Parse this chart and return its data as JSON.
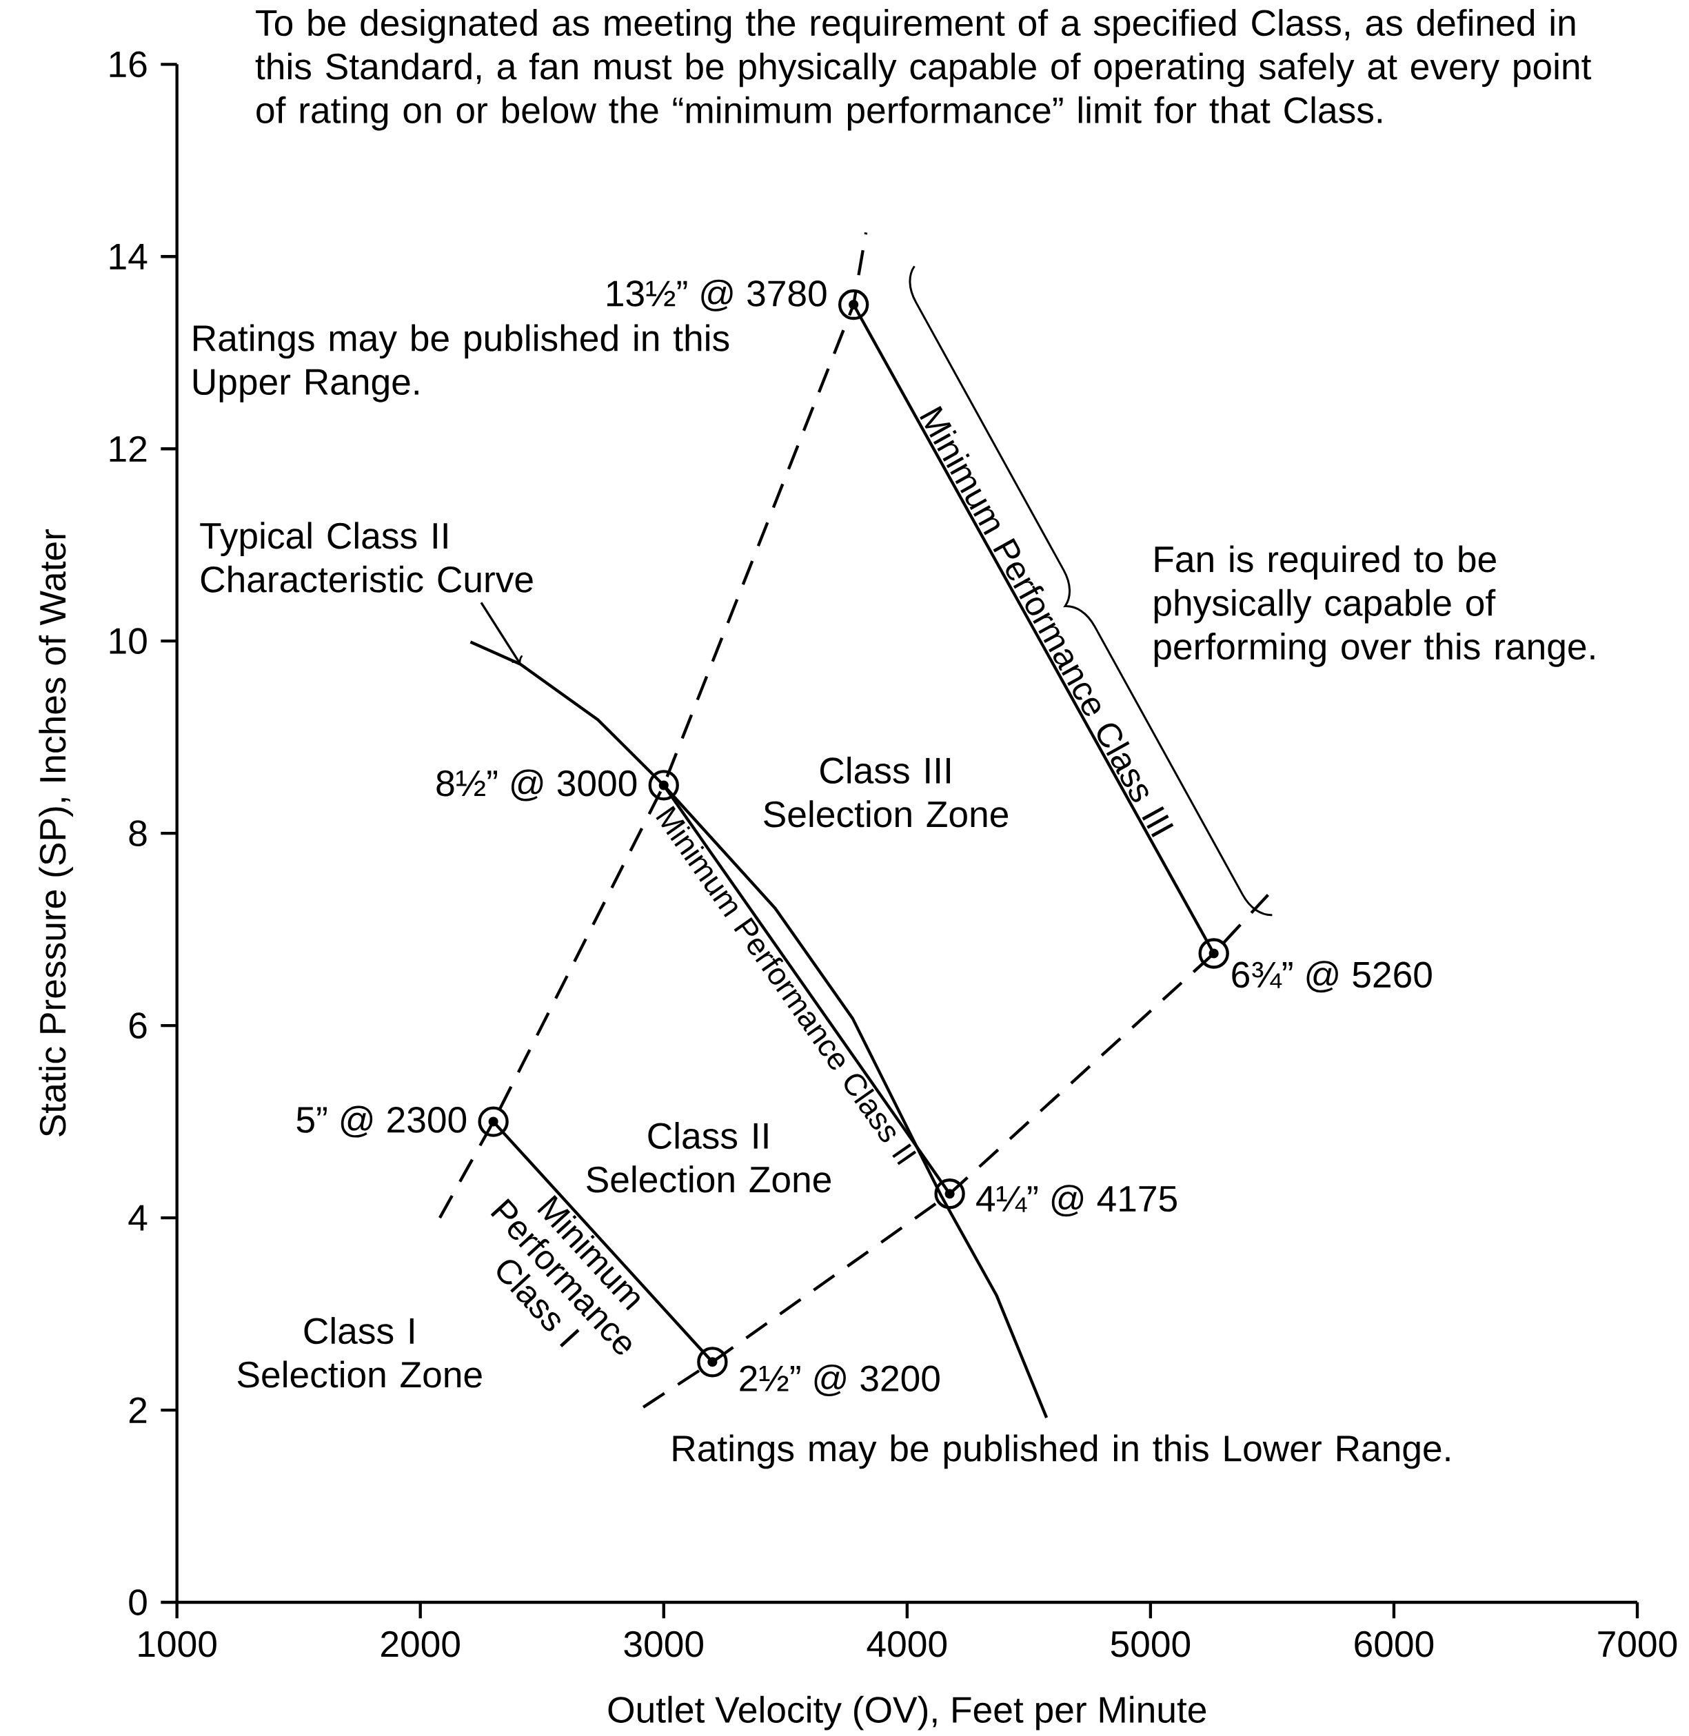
{
  "chart_data": {
    "type": "line",
    "xlabel": "Outlet Velocity (OV), Feet per Minute",
    "ylabel": "Static Pressure (SP), Inches of Water",
    "xlim": [
      1000,
      7000
    ],
    "ylim": [
      0,
      16
    ],
    "xticks": [
      1000,
      2000,
      3000,
      4000,
      5000,
      6000,
      7000
    ],
    "yticks": [
      0,
      2,
      4,
      6,
      8,
      10,
      12,
      14,
      16
    ],
    "series": [
      {
        "name": "Typical Class II Characteristic Curve",
        "color": "#000000",
        "line_style": "solid",
        "x": [
          2206,
          2411,
          2730,
          3000,
          3458,
          3777,
          4140,
          4368,
          4573
        ],
        "values": [
          9.99,
          9.76,
          9.18,
          8.5,
          7.22,
          6.07,
          4.23,
          3.19,
          1.92
        ]
      },
      {
        "name": "Minimum Performance Class I",
        "color": "#000000",
        "line_style": "solid",
        "marker": "circle",
        "x": [
          2300,
          3200
        ],
        "values": [
          5,
          2.5
        ]
      },
      {
        "name": "Minimum Performance Class II",
        "color": "#000000",
        "line_style": "solid",
        "marker": "circle",
        "x": [
          3000,
          4175
        ],
        "values": [
          8.5,
          4.25
        ]
      },
      {
        "name": "Minimum Performance Class III",
        "color": "#000000",
        "line_style": "solid",
        "marker": "circle",
        "x": [
          3780,
          5260
        ],
        "values": [
          13.5,
          6.75
        ]
      },
      {
        "color": "#000000",
        "line_style": "dashed",
        "x": [
          2080,
          2300,
          3000,
          3780,
          3831
        ],
        "values": [
          4.0,
          5,
          8.5,
          13.5,
          14.25
        ]
      },
      {
        "color": "#000000",
        "line_style": "dashed",
        "x": [
          2916,
          3200,
          4175,
          5260,
          5483
        ],
        "values": [
          2.03,
          2.5,
          4.25,
          6.75,
          7.36
        ]
      }
    ],
    "annotations": [
      {
        "text": "13½” @ 3780",
        "x": 3780,
        "y": 13.5
      },
      {
        "text": "8½” @ 3000",
        "x": 3000,
        "y": 8.5
      },
      {
        "text": "5” @ 2300",
        "x": 2300,
        "y": 5
      },
      {
        "text": "2½” @ 3200",
        "x": 3200,
        "y": 2.5
      },
      {
        "text": "4¼” @ 4175",
        "x": 4175,
        "y": 4.25
      },
      {
        "text": "6¾” @ 5260",
        "x": 5260,
        "y": 6.75
      },
      "Class III Selection Zone",
      "Class II Selection Zone",
      "Class I Selection Zone",
      "To be designated as meeting the requirement of a specified Class, as defined in this Standard, a fan must be physically capable of operating safely at every point of rating on or below the “minimum performance” limit for that Class.",
      "Ratings may be published in this Upper Range.",
      "Fan is required to be physically capable of performing over this range.",
      "Ratings may be published in this Lower Range."
    ]
  }
}
